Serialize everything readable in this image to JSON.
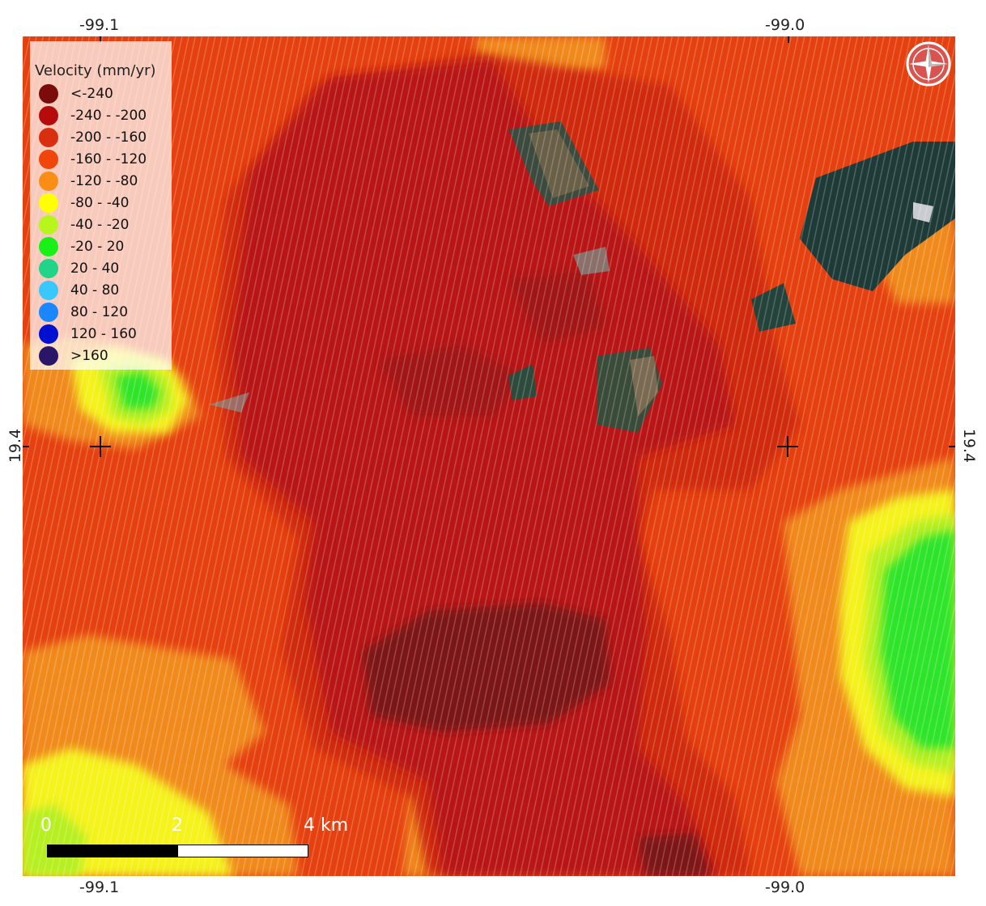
{
  "map": {
    "legend_title": "Velocity (mm/yr)",
    "legend": [
      {
        "label": "<-240",
        "color": "#7a0c0c"
      },
      {
        "label": "-240 - -200",
        "color": "#b50b0b"
      },
      {
        "label": "-200 - -160",
        "color": "#d8300e"
      },
      {
        "label": "-160 - -120",
        "color": "#f0460c"
      },
      {
        "label": "-120 - -80",
        "color": "#f98d16"
      },
      {
        "label": "-80 - -40",
        "color": "#ffff00"
      },
      {
        "label": "-40 - -20",
        "color": "#b8f51c"
      },
      {
        "label": "-20 - 20",
        "color": "#18f018"
      },
      {
        "label": "20 - 40",
        "color": "#20d48a"
      },
      {
        "label": "40 - 80",
        "color": "#38c8ff"
      },
      {
        "label": "80 - 120",
        "color": "#1a86ff"
      },
      {
        "label": "120 - 160",
        "color": "#0010d0"
      },
      {
        "label": ">160",
        "color": "#2a1666"
      }
    ],
    "coords": {
      "top_left": "-99.1",
      "top_right": "-99.0",
      "bottom_left": "-99.1",
      "bottom_right": "-99.0",
      "left_lat": "19.4",
      "right_lat": "19.4"
    },
    "scale": {
      "label_0": "0",
      "label_2": "2",
      "label_4": "4 km"
    },
    "compass_icon": "north-arrow-compass-icon"
  }
}
